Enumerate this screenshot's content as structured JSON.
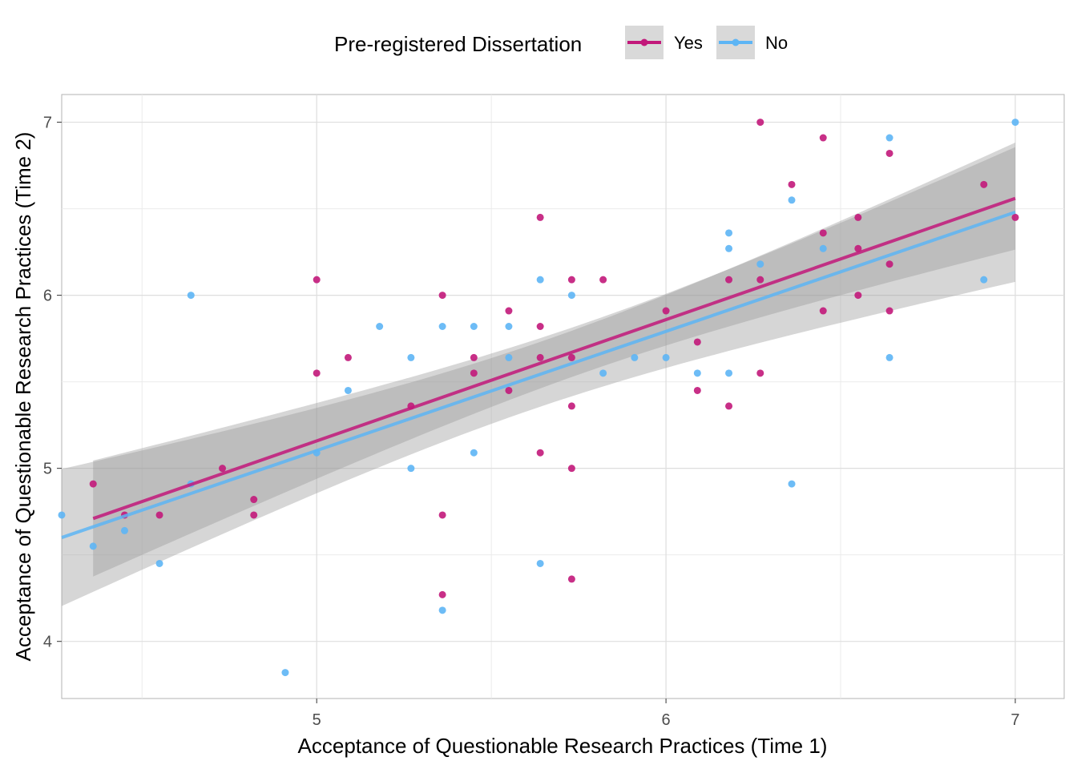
{
  "chart_data": {
    "type": "scatter",
    "xlabel": "Acceptance of Questionable Research Practices (Time 1)",
    "ylabel": "Acceptance of Questionable Research Practices (Time 2)",
    "xlim": [
      4.27,
      7.14
    ],
    "ylim": [
      3.67,
      7.16
    ],
    "x_ticks": [
      5,
      6,
      7
    ],
    "y_ticks": [
      4,
      5,
      6,
      7
    ],
    "grid": true,
    "legend": {
      "title": "Pre-registered Dissertation",
      "position": "top"
    },
    "series": [
      {
        "name": "Yes",
        "color": "#c2187a",
        "points": [
          [
            4.36,
            4.91
          ],
          [
            4.45,
            4.73
          ],
          [
            4.55,
            4.73
          ],
          [
            4.73,
            5.0
          ],
          [
            4.82,
            4.82
          ],
          [
            4.82,
            4.73
          ],
          [
            5.0,
            6.09
          ],
          [
            5.0,
            5.55
          ],
          [
            5.09,
            5.64
          ],
          [
            5.27,
            5.36
          ],
          [
            5.36,
            6.0
          ],
          [
            5.36,
            4.73
          ],
          [
            5.36,
            4.27
          ],
          [
            5.45,
            5.64
          ],
          [
            5.45,
            5.55
          ],
          [
            5.55,
            5.91
          ],
          [
            5.55,
            5.45
          ],
          [
            5.64,
            6.45
          ],
          [
            5.64,
            5.82
          ],
          [
            5.64,
            5.64
          ],
          [
            5.64,
            5.09
          ],
          [
            5.73,
            6.09
          ],
          [
            5.73,
            5.64
          ],
          [
            5.73,
            5.36
          ],
          [
            5.73,
            5.0
          ],
          [
            5.73,
            4.36
          ],
          [
            5.82,
            6.09
          ],
          [
            6.0,
            5.91
          ],
          [
            6.09,
            5.73
          ],
          [
            6.09,
            5.45
          ],
          [
            6.18,
            6.09
          ],
          [
            6.18,
            5.36
          ],
          [
            6.27,
            7.0
          ],
          [
            6.27,
            6.09
          ],
          [
            6.27,
            5.55
          ],
          [
            6.36,
            6.64
          ],
          [
            6.45,
            6.91
          ],
          [
            6.45,
            6.36
          ],
          [
            6.45,
            5.91
          ],
          [
            6.55,
            6.45
          ],
          [
            6.55,
            6.27
          ],
          [
            6.55,
            6.0
          ],
          [
            6.64,
            6.82
          ],
          [
            6.64,
            6.18
          ],
          [
            6.64,
            5.91
          ],
          [
            6.91,
            6.64
          ],
          [
            7.0,
            6.45
          ]
        ],
        "fit": {
          "x": [
            4.36,
            7.0
          ],
          "y": [
            4.71,
            6.56
          ]
        }
      },
      {
        "name": "No",
        "color": "#5db5f5",
        "points": [
          [
            4.27,
            4.73
          ],
          [
            4.36,
            4.55
          ],
          [
            4.45,
            4.64
          ],
          [
            4.55,
            4.45
          ],
          [
            4.64,
            6.0
          ],
          [
            4.64,
            4.91
          ],
          [
            4.91,
            3.82
          ],
          [
            5.0,
            5.09
          ],
          [
            5.09,
            5.45
          ],
          [
            5.18,
            5.82
          ],
          [
            5.27,
            5.64
          ],
          [
            5.27,
            5.0
          ],
          [
            5.36,
            5.82
          ],
          [
            5.36,
            4.18
          ],
          [
            5.45,
            5.82
          ],
          [
            5.45,
            5.09
          ],
          [
            5.55,
            5.82
          ],
          [
            5.55,
            5.64
          ],
          [
            5.64,
            6.09
          ],
          [
            5.64,
            4.45
          ],
          [
            5.73,
            6.0
          ],
          [
            5.82,
            5.55
          ],
          [
            5.91,
            5.64
          ],
          [
            6.0,
            5.64
          ],
          [
            6.09,
            5.55
          ],
          [
            6.18,
            6.36
          ],
          [
            6.18,
            6.27
          ],
          [
            6.18,
            5.55
          ],
          [
            6.27,
            6.18
          ],
          [
            6.36,
            6.55
          ],
          [
            6.36,
            4.91
          ],
          [
            6.45,
            6.27
          ],
          [
            6.64,
            6.91
          ],
          [
            6.64,
            5.64
          ],
          [
            6.91,
            6.09
          ],
          [
            7.0,
            7.0
          ]
        ],
        "fit": {
          "x": [
            4.27,
            7.0
          ],
          "y": [
            4.6,
            6.48
          ]
        }
      }
    ],
    "confidence_band_fill": "#999999"
  }
}
